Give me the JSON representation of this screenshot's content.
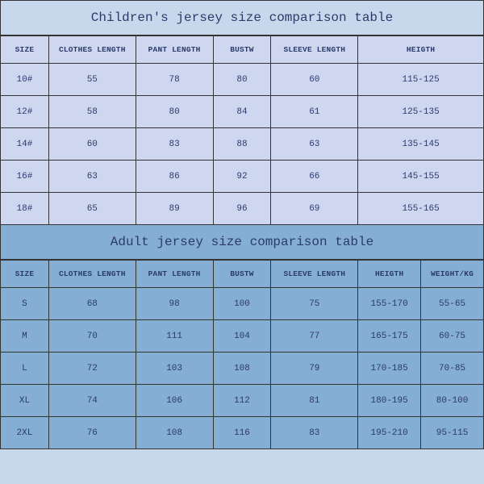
{
  "children": {
    "title": "Children's jersey size comparison table",
    "columns": [
      "SIZE",
      "CLOTHES LENGTH",
      "PANT LENGTH",
      "BUSTW",
      "SLEEVE LENGTH",
      "HEIGTH"
    ],
    "rows": [
      [
        "10#",
        "55",
        "78",
        "80",
        "60",
        "115-125"
      ],
      [
        "12#",
        "58",
        "80",
        "84",
        "61",
        "125-135"
      ],
      [
        "14#",
        "60",
        "83",
        "88",
        "63",
        "135-145"
      ],
      [
        "16#",
        "63",
        "86",
        "92",
        "66",
        "145-155"
      ],
      [
        "18#",
        "65",
        "89",
        "96",
        "69",
        "155-165"
      ]
    ],
    "title_bg": "#c8d8ec",
    "cell_bg": "#cfd7f0",
    "border_color": "#333333",
    "text_color": "#2a3a6a",
    "title_fontsize": 16,
    "header_fontsize": 9.5,
    "cell_fontsize": 11
  },
  "adult": {
    "title": "Adult jersey size comparison table",
    "columns": [
      "SIZE",
      "CLOTHES LENGTH",
      "PANT LENGTH",
      "BUSTW",
      "SLEEVE LENGTH",
      "HEIGTH",
      "WEIGHT/KG"
    ],
    "rows": [
      [
        "S",
        "68",
        "98",
        "100",
        "75",
        "155-170",
        "55-65"
      ],
      [
        "M",
        "70",
        "111",
        "104",
        "77",
        "165-175",
        "60-75"
      ],
      [
        "L",
        "72",
        "103",
        "108",
        "79",
        "170-185",
        "70-85"
      ],
      [
        "XL",
        "74",
        "106",
        "112",
        "81",
        "180-195",
        "80-100"
      ],
      [
        "2XL",
        "76",
        "108",
        "116",
        "83",
        "195-210",
        "95-115"
      ]
    ],
    "title_bg": "#85aed4",
    "cell_bg": "#85aed4",
    "border_color": "#333333",
    "text_color": "#2a3a6a",
    "title_fontsize": 16,
    "header_fontsize": 9.5,
    "cell_fontsize": 11
  }
}
